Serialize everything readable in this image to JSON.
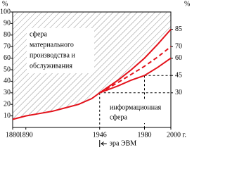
{
  "chart_data": {
    "type": "line",
    "y_label": "%",
    "y2_label": "%",
    "x": [
      1880,
      1890,
      1900,
      1910,
      1920,
      1930,
      1940,
      1946,
      1960,
      1970,
      1980,
      1990,
      2000
    ],
    "series": [
      {
        "color": "#e3121b",
        "style": "solid",
        "values": [
          7,
          10,
          12,
          14,
          17,
          20,
          25,
          30,
          null,
          null,
          null,
          null,
          null
        ]
      },
      {
        "color": "#e3121b",
        "style": "solid",
        "values": [
          null,
          null,
          null,
          null,
          null,
          null,
          null,
          30,
          41,
          50,
          60,
          72,
          85
        ]
      },
      {
        "color": "#e3121b",
        "style": "dashed",
        "values": [
          null,
          null,
          null,
          null,
          null,
          null,
          null,
          30,
          39,
          46,
          53,
          61,
          70
        ]
      },
      {
        "color": "#e3121b",
        "style": "solid",
        "values": [
          null,
          null,
          null,
          null,
          null,
          null,
          null,
          30,
          36,
          41,
          45,
          52,
          60
        ]
      }
    ],
    "xlim": [
      1880,
      2000
    ],
    "xticks": [
      1880,
      1890,
      1946,
      1980,
      {
        "value": 2000,
        "label": "2000 г."
      }
    ],
    "ylim": [
      0,
      100
    ],
    "yticks": [
      10,
      20,
      30,
      40,
      50,
      60,
      70,
      80,
      90,
      100
    ],
    "y2lim": [
      0,
      100
    ],
    "y2ticks": [
      30,
      45,
      60,
      70,
      85
    ],
    "markers": [
      {
        "x": 1946,
        "y": 30
      },
      {
        "x": 1980,
        "y": 45
      }
    ],
    "upper_label": [
      "сфера",
      "материального",
      "производства и",
      "обслуживания"
    ],
    "lower_label": [
      "информационная",
      "сфера"
    ],
    "era_label": "эра ЭВМ"
  }
}
